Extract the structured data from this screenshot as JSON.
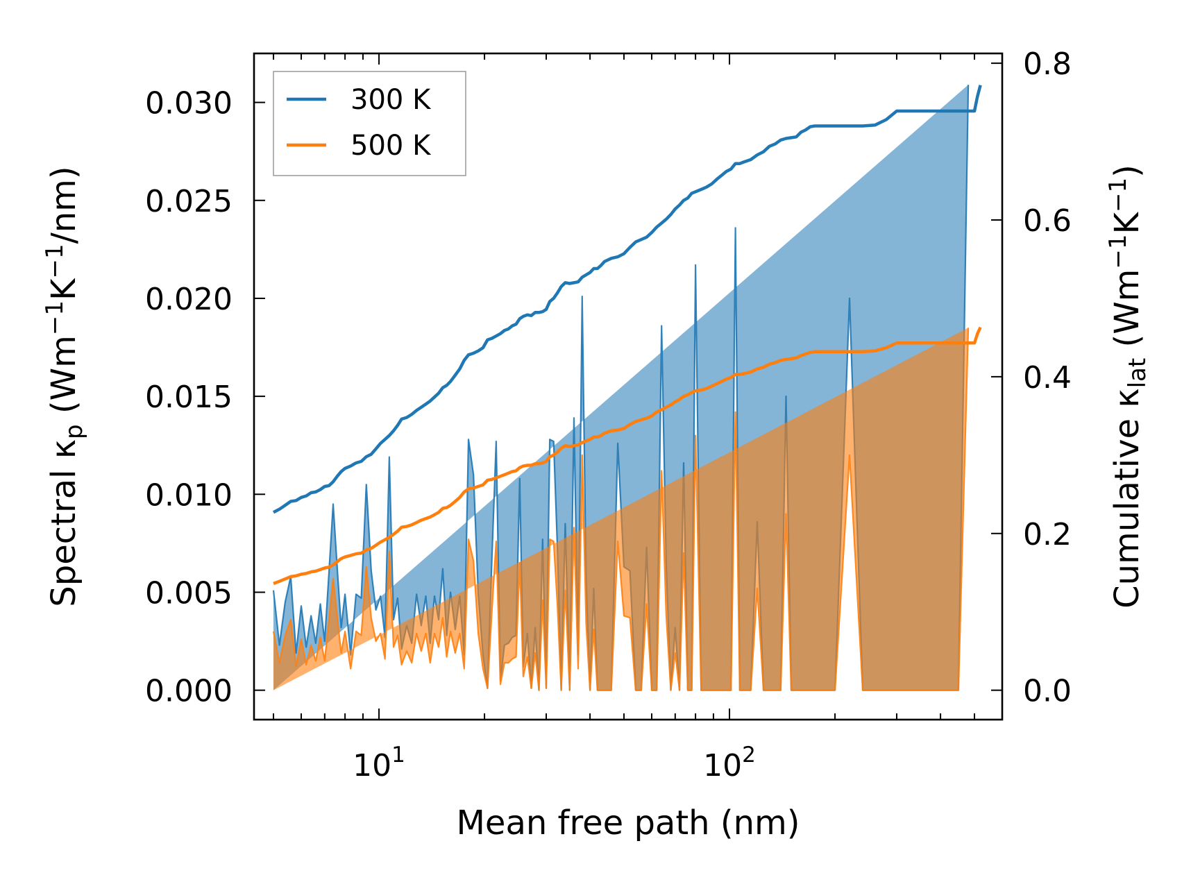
{
  "chart_data": {
    "type": "line",
    "title": "",
    "xlabel": "Mean free path (nm)",
    "xscale": "log",
    "xlim": [
      4.4,
      600
    ],
    "xticks": [
      {
        "value": 10,
        "base": "10",
        "exp": "1"
      },
      {
        "value": 100,
        "base": "10",
        "exp": "2"
      }
    ],
    "ylabel_left": {
      "prefix": "Spectral κ",
      "sub": "p",
      "mid": " (Wm",
      "sup1": "−1",
      "k": "K",
      "sup2": "−1",
      "suffix": "/nm)"
    },
    "ylim_left": [
      -0.0015,
      0.0325
    ],
    "yticks_left": [
      "0.000",
      "0.005",
      "0.010",
      "0.015",
      "0.020",
      "0.025",
      "0.030"
    ],
    "ylabel_right": {
      "prefix": "Cumulative κ",
      "sub": "lat",
      "mid": " (Wm",
      "sup1": "−1",
      "k": "K",
      "sup2": "−1",
      "suffix": ")"
    },
    "ylim_right": [
      -0.0375,
      0.8125
    ],
    "yticks_right": [
      "0.0",
      "0.2",
      "0.4",
      "0.6",
      "0.8"
    ],
    "legend_position": "upper-left",
    "spectral_x": [
      5,
      5.2,
      5.4,
      5.6,
      5.8,
      6,
      6.2,
      6.4,
      6.6,
      6.8,
      7,
      7.2,
      7.4,
      7.6,
      7.8,
      8,
      8.3,
      8.6,
      8.9,
      9.2,
      9.5,
      9.8,
      10.1,
      10.4,
      10.7,
      11,
      11.3,
      11.6,
      12,
      12.4,
      12.8,
      13.2,
      13.6,
      14,
      14.4,
      14.8,
      15.2,
      15.6,
      16,
      16.5,
      17,
      17.5,
      18,
      18.6,
      19.2,
      19.8,
      20.4,
      21,
      21.6,
      22.2,
      22.8,
      23.4,
      24,
      24.6,
      25.2,
      25.8,
      26.5,
      27.2,
      27.9,
      28.6,
      29.3,
      30,
      30.7,
      31.5,
      32.3,
      33.1,
      34,
      35,
      36,
      37,
      38,
      39,
      40,
      41,
      42,
      43,
      44,
      46,
      48,
      50,
      52,
      54,
      56,
      58,
      60,
      62,
      64,
      66,
      68,
      70,
      72,
      74,
      76,
      78,
      80,
      83,
      86,
      89,
      92,
      95,
      98,
      101,
      104,
      107,
      110,
      115,
      120,
      125,
      130,
      135,
      140,
      145,
      150,
      155,
      160,
      165,
      170,
      175,
      180,
      190,
      200,
      220,
      240,
      260,
      280,
      300,
      310,
      320,
      340,
      360,
      380,
      400,
      420,
      450,
      480,
      500,
      510,
      520
    ],
    "series": [
      {
        "name": "300 K",
        "color": "#1f77b4",
        "spectral": [
          0.0051,
          0.0023,
          0.0045,
          0.0058,
          0.0019,
          0.0043,
          0.0022,
          0.0038,
          0.0024,
          0.0044,
          0.0025,
          0.006,
          0.0095,
          0.0062,
          0.0032,
          0.0049,
          0.0018,
          0.0049,
          0.0047,
          0.0105,
          0.0061,
          0.0041,
          0.0048,
          0.0027,
          0.0119,
          0.0036,
          0.0047,
          0.0021,
          0.0033,
          0.0024,
          0.0049,
          0.0033,
          0.0048,
          0.0024,
          0.0048,
          0.0036,
          0.0062,
          0.0028,
          0.005,
          0.0031,
          0.0048,
          0.0018,
          0.0128,
          0.011,
          0.0049,
          0.0018,
          0.0001,
          0.0068,
          0.0127,
          0.0005,
          0.0023,
          0.0024,
          0.0027,
          0.0028,
          0.0108,
          0.0012,
          0.0029,
          0.0001,
          0.0032,
          0,
          0.0077,
          0.0001,
          0.0128,
          0.0127,
          0.0072,
          0,
          0.0085,
          0,
          0.0139,
          0.0018,
          0.0201,
          0.0056,
          0,
          0.0052,
          0,
          0,
          0,
          0,
          0.0126,
          0.0063,
          0.0061,
          0,
          0,
          0.0073,
          0,
          0,
          0.0186,
          0.0064,
          0,
          0.0032,
          0,
          0.0116,
          0,
          0,
          0.0217,
          0,
          0,
          0,
          0,
          0,
          0,
          0,
          0.0236,
          0,
          0,
          0,
          0.0086,
          0,
          0,
          0,
          0,
          0.015,
          0,
          0,
          0,
          0,
          0,
          0,
          0,
          0,
          0,
          0.02,
          0,
          0,
          0,
          0,
          0,
          0,
          0,
          0,
          0,
          0,
          0,
          0,
          0.0309
        ],
        "cumulative": [
          0.227,
          0.231,
          0.236,
          0.241,
          0.242,
          0.246,
          0.248,
          0.252,
          0.253,
          0.256,
          0.26,
          0.261,
          0.266,
          0.273,
          0.279,
          0.283,
          0.286,
          0.29,
          0.292,
          0.298,
          0.301,
          0.308,
          0.315,
          0.32,
          0.325,
          0.331,
          0.338,
          0.346,
          0.348,
          0.352,
          0.357,
          0.361,
          0.365,
          0.369,
          0.374,
          0.379,
          0.386,
          0.389,
          0.394,
          0.402,
          0.41,
          0.421,
          0.428,
          0.43,
          0.433,
          0.437,
          0.447,
          0.449,
          0.452,
          0.455,
          0.459,
          0.461,
          0.465,
          0.467,
          0.474,
          0.477,
          0.479,
          0.478,
          0.482,
          0.482,
          0.483,
          0.486,
          0.496,
          0.5,
          0.507,
          0.515,
          0.52,
          0.519,
          0.52,
          0.521,
          0.527,
          0.53,
          0.533,
          0.538,
          0.538,
          0.542,
          0.547,
          0.551,
          0.553,
          0.557,
          0.565,
          0.572,
          0.575,
          0.578,
          0.584,
          0.591,
          0.596,
          0.601,
          0.607,
          0.614,
          0.619,
          0.625,
          0.628,
          0.634,
          0.636,
          0.639,
          0.642,
          0.646,
          0.652,
          0.657,
          0.662,
          0.665,
          0.672,
          0.672,
          0.674,
          0.677,
          0.683,
          0.687,
          0.694,
          0.697,
          0.702,
          0.704,
          0.705,
          0.706,
          0.712,
          0.715,
          0.719,
          0.72,
          0.72,
          0.72,
          0.72,
          0.72,
          0.72,
          0.721,
          0.728,
          0.739,
          0.739,
          0.739,
          0.739,
          0.739,
          0.739,
          0.739,
          0.739,
          0.739,
          0.739,
          0.739,
          0.758,
          0.772
        ]
      },
      {
        "name": "500 K",
        "color": "#ff7f0e",
        "spectral": [
          0.003,
          0.0014,
          0.0028,
          0.0036,
          0.0012,
          0.0026,
          0.0013,
          0.0023,
          0.0015,
          0.0027,
          0.0015,
          0.0036,
          0.0057,
          0.0037,
          0.0019,
          0.003,
          0.0011,
          0.003,
          0.0028,
          0.0063,
          0.0037,
          0.0025,
          0.0029,
          0.0016,
          0.0071,
          0.0022,
          0.0028,
          0.0013,
          0.002,
          0.0014,
          0.0029,
          0.002,
          0.0029,
          0.0014,
          0.0029,
          0.0022,
          0.0037,
          0.0017,
          0.003,
          0.0019,
          0.0029,
          0.0011,
          0.0077,
          0.0066,
          0.0029,
          0.0011,
          0.0001,
          0.0041,
          0.0076,
          0.0003,
          0.0014,
          0.0014,
          0.0016,
          0.0017,
          0.0065,
          0.0007,
          0.0017,
          0.0001,
          0.0019,
          0,
          0.0046,
          0.0001,
          0.0077,
          0.0076,
          0.0043,
          0,
          0.0051,
          0,
          0.0083,
          0.0011,
          0.012,
          0.0034,
          0,
          0.0031,
          0,
          0,
          0,
          0,
          0.0076,
          0.0038,
          0.0037,
          0,
          0,
          0.0044,
          0,
          0,
          0.0112,
          0.0038,
          0,
          0.0019,
          0,
          0.007,
          0,
          0,
          0.013,
          0,
          0,
          0,
          0,
          0,
          0,
          0,
          0.0142,
          0,
          0,
          0,
          0.0052,
          0,
          0,
          0,
          0,
          0.009,
          0,
          0,
          0,
          0,
          0,
          0,
          0,
          0,
          0,
          0.012,
          0,
          0,
          0,
          0,
          0,
          0,
          0,
          0,
          0,
          0,
          0,
          0,
          0.0185
        ],
        "cumulative": [
          0.136,
          0.139,
          0.142,
          0.145,
          0.146,
          0.148,
          0.149,
          0.151,
          0.152,
          0.154,
          0.156,
          0.157,
          0.16,
          0.164,
          0.168,
          0.17,
          0.172,
          0.174,
          0.175,
          0.179,
          0.181,
          0.185,
          0.189,
          0.192,
          0.195,
          0.199,
          0.203,
          0.208,
          0.209,
          0.211,
          0.214,
          0.217,
          0.219,
          0.221,
          0.224,
          0.227,
          0.232,
          0.233,
          0.236,
          0.241,
          0.246,
          0.253,
          0.257,
          0.258,
          0.26,
          0.262,
          0.268,
          0.269,
          0.271,
          0.273,
          0.275,
          0.277,
          0.279,
          0.28,
          0.284,
          0.286,
          0.287,
          0.287,
          0.289,
          0.289,
          0.29,
          0.292,
          0.298,
          0.3,
          0.304,
          0.309,
          0.312,
          0.311,
          0.312,
          0.313,
          0.316,
          0.318,
          0.32,
          0.323,
          0.323,
          0.325,
          0.328,
          0.331,
          0.332,
          0.334,
          0.339,
          0.343,
          0.345,
          0.347,
          0.35,
          0.355,
          0.358,
          0.361,
          0.364,
          0.368,
          0.371,
          0.375,
          0.377,
          0.38,
          0.382,
          0.383,
          0.385,
          0.388,
          0.391,
          0.394,
          0.397,
          0.399,
          0.403,
          0.403,
          0.404,
          0.406,
          0.41,
          0.412,
          0.416,
          0.418,
          0.421,
          0.422,
          0.423,
          0.424,
          0.427,
          0.429,
          0.431,
          0.432,
          0.432,
          0.432,
          0.432,
          0.432,
          0.432,
          0.433,
          0.437,
          0.443,
          0.443,
          0.443,
          0.443,
          0.443,
          0.443,
          0.443,
          0.443,
          0.443,
          0.443,
          0.443,
          0.455,
          0.463
        ]
      }
    ]
  }
}
